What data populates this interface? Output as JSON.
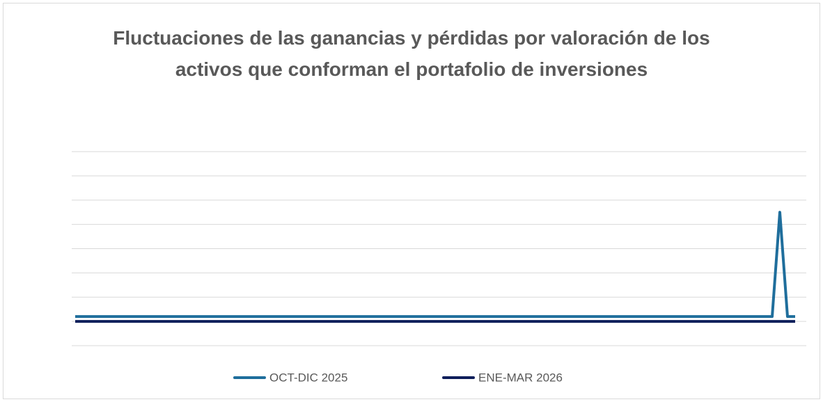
{
  "chart_data": {
    "type": "line",
    "title": "Fluctuaciones de las ganancias y pérdidas por valoración de los activos que conforman el portafolio de inversiones",
    "categories": [
      null,
      null,
      null,
      null,
      null,
      null,
      null,
      null,
      null,
      null,
      null,
      null,
      null,
      null,
      null,
      null,
      null,
      null,
      null,
      null,
      null,
      null,
      null,
      null,
      null,
      null,
      null,
      null,
      null,
      null,
      null,
      null,
      null,
      null,
      null,
      null,
      null,
      null,
      null,
      null,
      null,
      null,
      null,
      null,
      null,
      null,
      null,
      null,
      null,
      null,
      null,
      null,
      null,
      null,
      null,
      null,
      null,
      null,
      null,
      null,
      null,
      null,
      null,
      null,
      null,
      null,
      null,
      null,
      null,
      null,
      null,
      null,
      null,
      null,
      null,
      null,
      null,
      null,
      null,
      null,
      null,
      null,
      null,
      null,
      null,
      null,
      null,
      null,
      null,
      null,
      null,
      null,
      null,
      null,
      null
    ],
    "series": [
      {
        "name": "OCT-DIC 2025",
        "color": "#1f6e9c",
        "values": [
          0.2,
          0.2,
          0.2,
          0.2,
          0.2,
          0.2,
          0.2,
          0.2,
          0.2,
          0.2,
          0.2,
          0.2,
          0.2,
          0.2,
          0.2,
          0.2,
          0.2,
          0.2,
          0.2,
          0.2,
          0.2,
          0.2,
          0.2,
          0.2,
          0.2,
          0.2,
          0.2,
          0.2,
          0.2,
          0.2,
          0.2,
          0.2,
          0.2,
          0.2,
          0.2,
          0.2,
          0.2,
          0.2,
          0.2,
          0.2,
          0.2,
          0.2,
          0.2,
          0.2,
          0.2,
          0.2,
          0.2,
          0.2,
          0.2,
          0.2,
          0.2,
          0.2,
          0.2,
          0.2,
          0.2,
          0.2,
          0.2,
          0.2,
          0.2,
          0.2,
          0.2,
          0.2,
          0.2,
          0.2,
          0.2,
          0.2,
          0.2,
          0.2,
          0.2,
          0.2,
          0.2,
          0.2,
          0.2,
          0.2,
          0.2,
          0.2,
          0.2,
          0.2,
          0.2,
          0.2,
          0.2,
          0.2,
          0.2,
          0.2,
          0.2,
          0.2,
          0.2,
          0.2,
          0.2,
          0.2,
          0.2,
          0.2,
          4.5,
          0.2,
          0.2
        ]
      },
      {
        "name": "ENE-MAR 2026",
        "color": "#0e1f5b",
        "values": [
          0,
          0,
          0,
          0,
          0,
          0,
          0,
          0,
          0,
          0,
          0,
          0,
          0,
          0,
          0,
          0,
          0,
          0,
          0,
          0,
          0,
          0,
          0,
          0,
          0,
          0,
          0,
          0,
          0,
          0,
          0,
          0,
          0,
          0,
          0,
          0,
          0,
          0,
          0,
          0,
          0,
          0,
          0,
          0,
          0,
          0,
          0,
          0,
          0,
          0,
          0,
          0,
          0,
          0,
          0,
          0,
          0,
          0,
          0,
          0,
          0,
          0,
          0,
          0,
          0,
          0,
          0,
          0,
          0,
          0,
          0,
          0,
          0,
          0,
          0,
          0,
          0,
          0,
          0,
          0,
          0,
          0,
          0,
          0,
          0,
          0,
          0,
          0,
          0,
          0,
          0,
          0,
          0,
          0,
          0
        ]
      }
    ],
    "ylim": [
      -1,
      7
    ],
    "yticks": [
      -1,
      0,
      1,
      2,
      3,
      4,
      5,
      6,
      7
    ],
    "grid": true,
    "legend": "bottom"
  }
}
